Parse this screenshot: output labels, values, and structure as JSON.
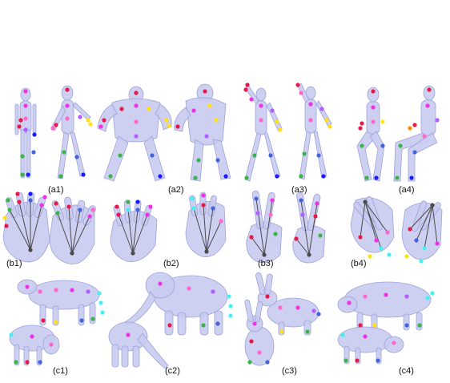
{
  "colors": {
    "mesh_fill": "#c9cbef",
    "mesh_stroke": "#9ea2d8",
    "skeleton_line": "#4a4a4a",
    "joint_palette": [
      "#e6194b",
      "#f032e6",
      "#ff66cc",
      "#b35cff",
      "#3cb44b",
      "#4363d8",
      "#1a1aff",
      "#ffe119",
      "#46f0f0",
      "#ff8c00"
    ]
  },
  "panels": [
    {
      "id": "a1",
      "label": "(a1)",
      "row": "human",
      "icon": "human-figure-pair"
    },
    {
      "id": "a2",
      "label": "(a2)",
      "row": "human",
      "icon": "muscular-figure-pair"
    },
    {
      "id": "a3",
      "label": "(a3)",
      "row": "human",
      "icon": "human-figure-pair"
    },
    {
      "id": "a4",
      "label": "(a4)",
      "row": "human",
      "icon": "seated-figure-pair"
    },
    {
      "id": "b1",
      "label": "(b1)",
      "row": "hand",
      "icon": "open-hand-pair"
    },
    {
      "id": "b2",
      "label": "(b2)",
      "row": "hand",
      "icon": "open-hand-pair"
    },
    {
      "id": "b3",
      "label": "(b3)",
      "row": "hand",
      "icon": "v-sign-hand-pair"
    },
    {
      "id": "b4",
      "label": "(b4)",
      "row": "hand",
      "icon": "open-hand-pair"
    },
    {
      "id": "c1",
      "label": "(c1)",
      "row": "animal",
      "icon": "cow-pair"
    },
    {
      "id": "c2",
      "label": "(c2)",
      "row": "animal",
      "icon": "elephant-pair"
    },
    {
      "id": "c3",
      "label": "(c3)",
      "row": "animal",
      "icon": "rabbit-pair"
    },
    {
      "id": "c4",
      "label": "(c4)",
      "row": "animal",
      "icon": "pig-pair"
    }
  ]
}
